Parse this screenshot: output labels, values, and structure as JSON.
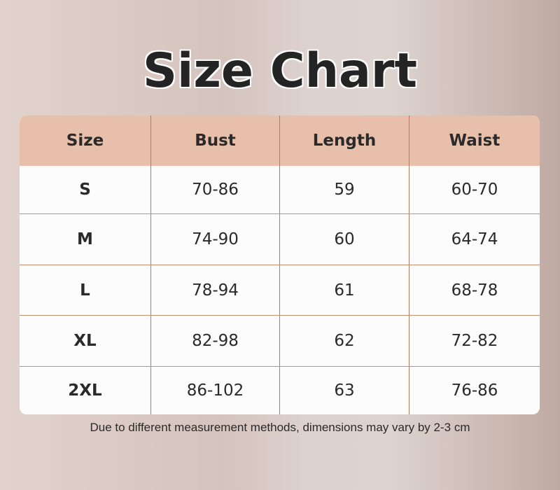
{
  "title": "Size Chart",
  "table": {
    "headers": [
      "Size",
      "Bust",
      "Length",
      "Waist"
    ],
    "rows": [
      [
        "S",
        "70-86",
        "59",
        "60-70"
      ],
      [
        "M",
        "74-90",
        "60",
        "64-74"
      ],
      [
        "L",
        "78-94",
        "61",
        "68-78"
      ],
      [
        "XL",
        "82-98",
        "62",
        "72-82"
      ],
      [
        "2XL",
        "86-102",
        "63",
        "76-86"
      ]
    ]
  },
  "note": "Due to different measurement methods, dimensions may vary by 2-3 cm",
  "colors": {
    "header_bg": "#e8bfaa",
    "border": "#b27a5f",
    "text": "#242424"
  }
}
